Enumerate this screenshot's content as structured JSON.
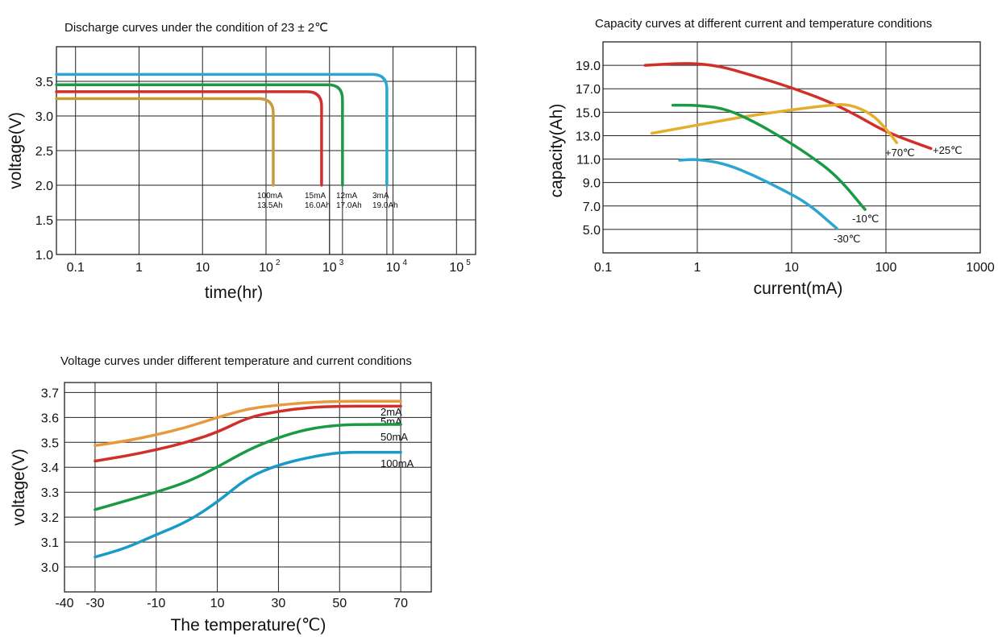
{
  "chart_data": [
    {
      "type": "line",
      "title": "Discharge curves under the condition of 23 ± 2℃",
      "xlabel": "time(hr)",
      "ylabel": "voltage(V)",
      "x_scale": "log",
      "xlim": [
        0.05,
        200000
      ],
      "ylim": [
        1.0,
        4.0
      ],
      "x_tick_labels": [
        "0.1",
        "1",
        "10",
        "10",
        "10",
        "10",
        "10"
      ],
      "x_tick_exponents": [
        "",
        "",
        "",
        "2",
        "3",
        "4",
        "5"
      ],
      "y_tick_labels": [
        "3.5",
        "3.0",
        "2.5",
        "2.0",
        "1.5",
        "1.0"
      ],
      "series": [
        {
          "name": "3mA",
          "capacity": "19.0Ah",
          "color": "#2aa6d0",
          "plateau_v": 3.6,
          "end_hr": 8000
        },
        {
          "name": "12mA",
          "capacity": "17.0Ah",
          "color": "#1a9a45",
          "plateau_v": 3.45,
          "end_hr": 1600
        },
        {
          "name": "15mA",
          "capacity": "16.0Ah",
          "color": "#d12f2a",
          "plateau_v": 3.35,
          "end_hr": 750
        },
        {
          "name": "100mA",
          "capacity": "13.5Ah",
          "color": "#c89b3a",
          "plateau_v": 3.25,
          "end_hr": 130
        }
      ]
    },
    {
      "type": "line",
      "title": "Capacity curves at different current and temperature conditions",
      "xlabel": "current(mA)",
      "ylabel": "capacity(Ah)",
      "x_scale": "log",
      "xlim": [
        0.1,
        1000
      ],
      "ylim": [
        3.0,
        21.0
      ],
      "x_tick_labels": [
        "0.1",
        "1",
        "10",
        "100",
        "1000"
      ],
      "y_tick_labels": [
        "19.0",
        "17.0",
        "15.0",
        "13.0",
        "11.0",
        "9.0",
        "7.0",
        "5.0"
      ],
      "series": [
        {
          "name": "+25℃",
          "color": "#d12f2a",
          "points": [
            [
              0.28,
              19.0
            ],
            [
              0.6,
              19.15
            ],
            [
              1,
              19.15
            ],
            [
              1.8,
              18.9
            ],
            [
              4,
              18.1
            ],
            [
              10,
              17.1
            ],
            [
              25,
              15.9
            ],
            [
              50,
              14.7
            ],
            [
              100,
              13.3
            ],
            [
              300,
              11.9
            ]
          ]
        },
        {
          "name": "+70℃",
          "color": "#e3ae2c",
          "points": [
            [
              0.33,
              13.2
            ],
            [
              1,
              13.9
            ],
            [
              3,
              14.6
            ],
            [
              10,
              15.2
            ],
            [
              25,
              15.6
            ],
            [
              40,
              15.7
            ],
            [
              70,
              14.9
            ],
            [
              100,
              13.6
            ],
            [
              130,
              12.4
            ]
          ]
        },
        {
          "name": "-10℃",
          "color": "#1a9a45",
          "points": [
            [
              0.55,
              15.6
            ],
            [
              1,
              15.6
            ],
            [
              2,
              15.3
            ],
            [
              4,
              14.2
            ],
            [
              8,
              12.8
            ],
            [
              15,
              11.4
            ],
            [
              30,
              9.6
            ],
            [
              60,
              6.7
            ]
          ]
        },
        {
          "name": "-30℃",
          "color": "#2aa6d0",
          "points": [
            [
              0.65,
              10.9
            ],
            [
              1,
              11.0
            ],
            [
              2,
              10.6
            ],
            [
              4,
              9.6
            ],
            [
              8,
              8.4
            ],
            [
              15,
              7.2
            ],
            [
              30,
              5.1
            ]
          ]
        }
      ]
    },
    {
      "type": "line",
      "title": "Voltage curves under different temperature and current conditions",
      "xlabel": "The temperature(℃)",
      "ylabel": "voltage(V)",
      "xlim": [
        -40,
        80
      ],
      "ylim": [
        2.9,
        3.74
      ],
      "x_tick_labels": [
        "-40",
        "-30",
        "-10",
        "10",
        "30",
        "50",
        "70"
      ],
      "y_tick_labels": [
        "3.7",
        "3.6",
        "3.5",
        "3.4",
        "3.3",
        "3.2",
        "3.1",
        "3.0"
      ],
      "series": [
        {
          "name": "2mA",
          "color": "#e79a3d",
          "x": [
            -30,
            -20,
            -10,
            0,
            10,
            20,
            30,
            40,
            50,
            60,
            70
          ],
          "y": [
            3.487,
            3.505,
            3.53,
            3.56,
            3.6,
            3.635,
            3.65,
            3.66,
            3.665,
            3.665,
            3.665
          ]
        },
        {
          "name": "5mA",
          "color": "#d12f2a",
          "x": [
            -30,
            -20,
            -10,
            0,
            10,
            20,
            30,
            40,
            50,
            60,
            70
          ],
          "y": [
            3.425,
            3.445,
            3.47,
            3.5,
            3.54,
            3.6,
            3.625,
            3.64,
            3.645,
            3.645,
            3.645
          ]
        },
        {
          "name": "50mA",
          "color": "#1a9a45",
          "x": [
            -30,
            -20,
            -10,
            0,
            10,
            20,
            30,
            40,
            50,
            60,
            70
          ],
          "y": [
            3.23,
            3.265,
            3.3,
            3.34,
            3.4,
            3.47,
            3.52,
            3.555,
            3.57,
            3.572,
            3.572
          ]
        },
        {
          "name": "100mA",
          "color": "#1a9ac6",
          "x": [
            -30,
            -20,
            -10,
            0,
            10,
            20,
            30,
            40,
            50,
            60,
            70
          ],
          "y": [
            3.04,
            3.075,
            3.13,
            3.18,
            3.26,
            3.36,
            3.41,
            3.44,
            3.46,
            3.46,
            3.46
          ]
        }
      ]
    }
  ]
}
